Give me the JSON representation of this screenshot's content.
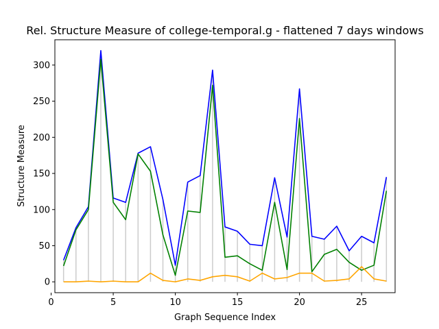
{
  "chart_data": {
    "type": "line",
    "title": "Rel. Structure Measure of college-temporal.g - flattened 7 days windows",
    "xlabel": "Graph Sequence Index",
    "ylabel": "Structure Measure",
    "xlim": [
      0.3,
      27.7
    ],
    "ylim": [
      -15,
      335
    ],
    "xticks": [
      0,
      5,
      10,
      15,
      20,
      25
    ],
    "yticks": [
      0,
      50,
      100,
      150,
      200,
      250,
      300
    ],
    "grid": false,
    "x": [
      1,
      2,
      3,
      4,
      5,
      6,
      7,
      8,
      9,
      10,
      11,
      12,
      13,
      14,
      15,
      16,
      17,
      18,
      19,
      20,
      21,
      22,
      23,
      24,
      25,
      26,
      27
    ],
    "series": [
      {
        "color": "#0000ff",
        "values": [
          30,
          75,
          104,
          320,
          116,
          110,
          178,
          187,
          114,
          23,
          138,
          147,
          293,
          76,
          70,
          52,
          50,
          144,
          62,
          267,
          63,
          59,
          77,
          43,
          63,
          54,
          145
        ]
      },
      {
        "color": "#008000",
        "values": [
          22,
          72,
          100,
          308,
          110,
          86,
          177,
          153,
          65,
          9,
          98,
          96,
          272,
          34,
          36,
          25,
          16,
          110,
          17,
          226,
          14,
          38,
          45,
          27,
          16,
          23,
          126
        ]
      },
      {
        "color": "#ffa500",
        "values": [
          0,
          0,
          1,
          0,
          1,
          0,
          0,
          12,
          2,
          0,
          4,
          2,
          7,
          9,
          7,
          1,
          12,
          4,
          6,
          12,
          12,
          1,
          2,
          4,
          21,
          4,
          1
        ]
      }
    ],
    "stems": {
      "color": "#cccccc",
      "values": [
        30,
        75,
        104,
        320,
        116,
        110,
        178,
        187,
        114,
        23,
        138,
        147,
        293,
        76,
        70,
        52,
        50,
        144,
        62,
        267,
        63,
        59,
        77,
        43,
        63,
        54,
        145
      ]
    }
  }
}
